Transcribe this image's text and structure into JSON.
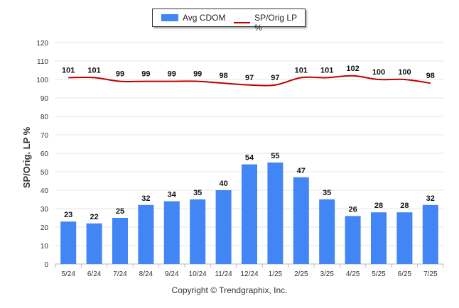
{
  "chart_data": {
    "type": "bar",
    "categories": [
      "5/24",
      "6/24",
      "7/24",
      "8/24",
      "9/24",
      "10/24",
      "11/24",
      "12/24",
      "1/25",
      "2/25",
      "3/25",
      "4/25",
      "5/25",
      "6/25",
      "7/25"
    ],
    "series": [
      {
        "name": "Avg CDOM",
        "type": "bar",
        "color": "#4285f4",
        "values": [
          23,
          22,
          25,
          32,
          34,
          35,
          40,
          54,
          55,
          47,
          35,
          26,
          28,
          28,
          32
        ]
      },
      {
        "name": "SP/Orig LP %",
        "type": "line",
        "color": "#c00000",
        "values": [
          101,
          101,
          99,
          99,
          99,
          99,
          98,
          97,
          97,
          101,
          101,
          102,
          100,
          100,
          98
        ]
      }
    ],
    "ylabel": "SP/Orig. LP %",
    "ylim": [
      0,
      120
    ],
    "yticks": [
      0,
      10,
      20,
      30,
      40,
      50,
      60,
      70,
      80,
      90,
      100,
      110,
      120
    ],
    "grid": true,
    "legend": "top-center"
  },
  "copyright": "Copyright © Trendgraphix, Inc."
}
